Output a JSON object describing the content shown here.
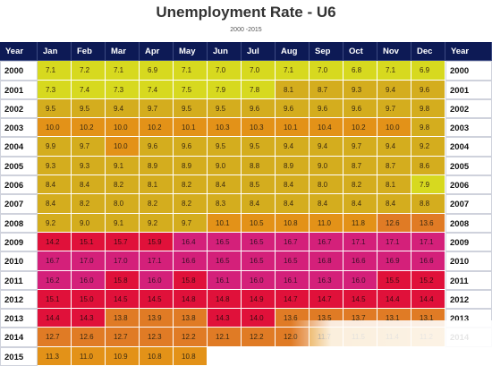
{
  "chart_data": {
    "type": "table",
    "title": "Unemployment Rate - U6",
    "subtitle": "2000 -2015",
    "header_left": "Year",
    "header_right": "Year",
    "months": [
      "Jan",
      "Feb",
      "Mar",
      "Apr",
      "May",
      "Jun",
      "Jul",
      "Aug",
      "Sep",
      "Oct",
      "Nov",
      "Dec"
    ],
    "rows": [
      {
        "year": "2000",
        "values": [
          "7.1",
          "7.2",
          "7.1",
          "6.9",
          "7.1",
          "7.0",
          "7.0",
          "7.1",
          "7.0",
          "6.8",
          "7.1",
          "6.9"
        ]
      },
      {
        "year": "2001",
        "values": [
          "7.3",
          "7.4",
          "7.3",
          "7.4",
          "7.5",
          "7.9",
          "7.8",
          "8.1",
          "8.7",
          "9.3",
          "9.4",
          "9.6"
        ]
      },
      {
        "year": "2002",
        "values": [
          "9.5",
          "9.5",
          "9.4",
          "9.7",
          "9.5",
          "9.5",
          "9.6",
          "9.6",
          "9.6",
          "9.6",
          "9.7",
          "9.8"
        ]
      },
      {
        "year": "2003",
        "values": [
          "10.0",
          "10.2",
          "10.0",
          "10.2",
          "10.1",
          "10.3",
          "10.3",
          "10.1",
          "10.4",
          "10.2",
          "10.0",
          "9.8"
        ]
      },
      {
        "year": "2004",
        "values": [
          "9.9",
          "9.7",
          "10.0",
          "9.6",
          "9.6",
          "9.5",
          "9.5",
          "9.4",
          "9.4",
          "9.7",
          "9.4",
          "9.2"
        ]
      },
      {
        "year": "2005",
        "values": [
          "9.3",
          "9.3",
          "9.1",
          "8.9",
          "8.9",
          "9.0",
          "8.8",
          "8.9",
          "9.0",
          "8.7",
          "8.7",
          "8.6"
        ]
      },
      {
        "year": "2006",
        "values": [
          "8.4",
          "8.4",
          "8.2",
          "8.1",
          "8.2",
          "8.4",
          "8.5",
          "8.4",
          "8.0",
          "8.2",
          "8.1",
          "7.9"
        ]
      },
      {
        "year": "2007",
        "values": [
          "8.4",
          "8.2",
          "8.0",
          "8.2",
          "8.2",
          "8.3",
          "8.4",
          "8.4",
          "8.4",
          "8.4",
          "8.4",
          "8.8"
        ]
      },
      {
        "year": "2008",
        "values": [
          "9.2",
          "9.0",
          "9.1",
          "9.2",
          "9.7",
          "10.1",
          "10.5",
          "10.8",
          "11.0",
          "11.8",
          "12.6",
          "13.6"
        ]
      },
      {
        "year": "2009",
        "values": [
          "14.2",
          "15.1",
          "15.7",
          "15.9",
          "16.4",
          "16.5",
          "16.5",
          "16.7",
          "16.7",
          "17.1",
          "17.1",
          "17.1"
        ]
      },
      {
        "year": "2010",
        "values": [
          "16.7",
          "17.0",
          "17.0",
          "17.1",
          "16.6",
          "16.5",
          "16.5",
          "16.5",
          "16.8",
          "16.6",
          "16.9",
          "16.6"
        ]
      },
      {
        "year": "2011",
        "values": [
          "16.2",
          "16.0",
          "15.8",
          "16.0",
          "15.8",
          "16.1",
          "16.0",
          "16.1",
          "16.3",
          "16.0",
          "15.5",
          "15.2"
        ]
      },
      {
        "year": "2012",
        "values": [
          "15.1",
          "15.0",
          "14.5",
          "14.5",
          "14.8",
          "14.8",
          "14.9",
          "14.7",
          "14.7",
          "14.5",
          "14.4",
          "14.4"
        ]
      },
      {
        "year": "2013",
        "values": [
          "14.4",
          "14.3",
          "13.8",
          "13.9",
          "13.8",
          "14.3",
          "14.0",
          "13.6",
          "13.5",
          "13.7",
          "13.1",
          "13.1"
        ]
      },
      {
        "year": "2014",
        "values": [
          "12.7",
          "12.6",
          "12.7",
          "12.3",
          "12.2",
          "12.1",
          "12.2",
          "12.0",
          "11.7",
          "11.5",
          "11.4",
          "11.2"
        ]
      },
      {
        "year": "2015",
        "values": [
          "11.3",
          "11.0",
          "10.9",
          "10.8",
          "10.8"
        ]
      }
    ],
    "colors": {
      "header_bg": "#0d1a55",
      "band_6_9": "#d7d91f",
      "band_9_10": "#d4ad1e",
      "band_10_12": "#e39218",
      "band_12_14": "#e07b25",
      "band_14_16": "#e0113a",
      "band_16_plus": "#d4207a"
    }
  }
}
